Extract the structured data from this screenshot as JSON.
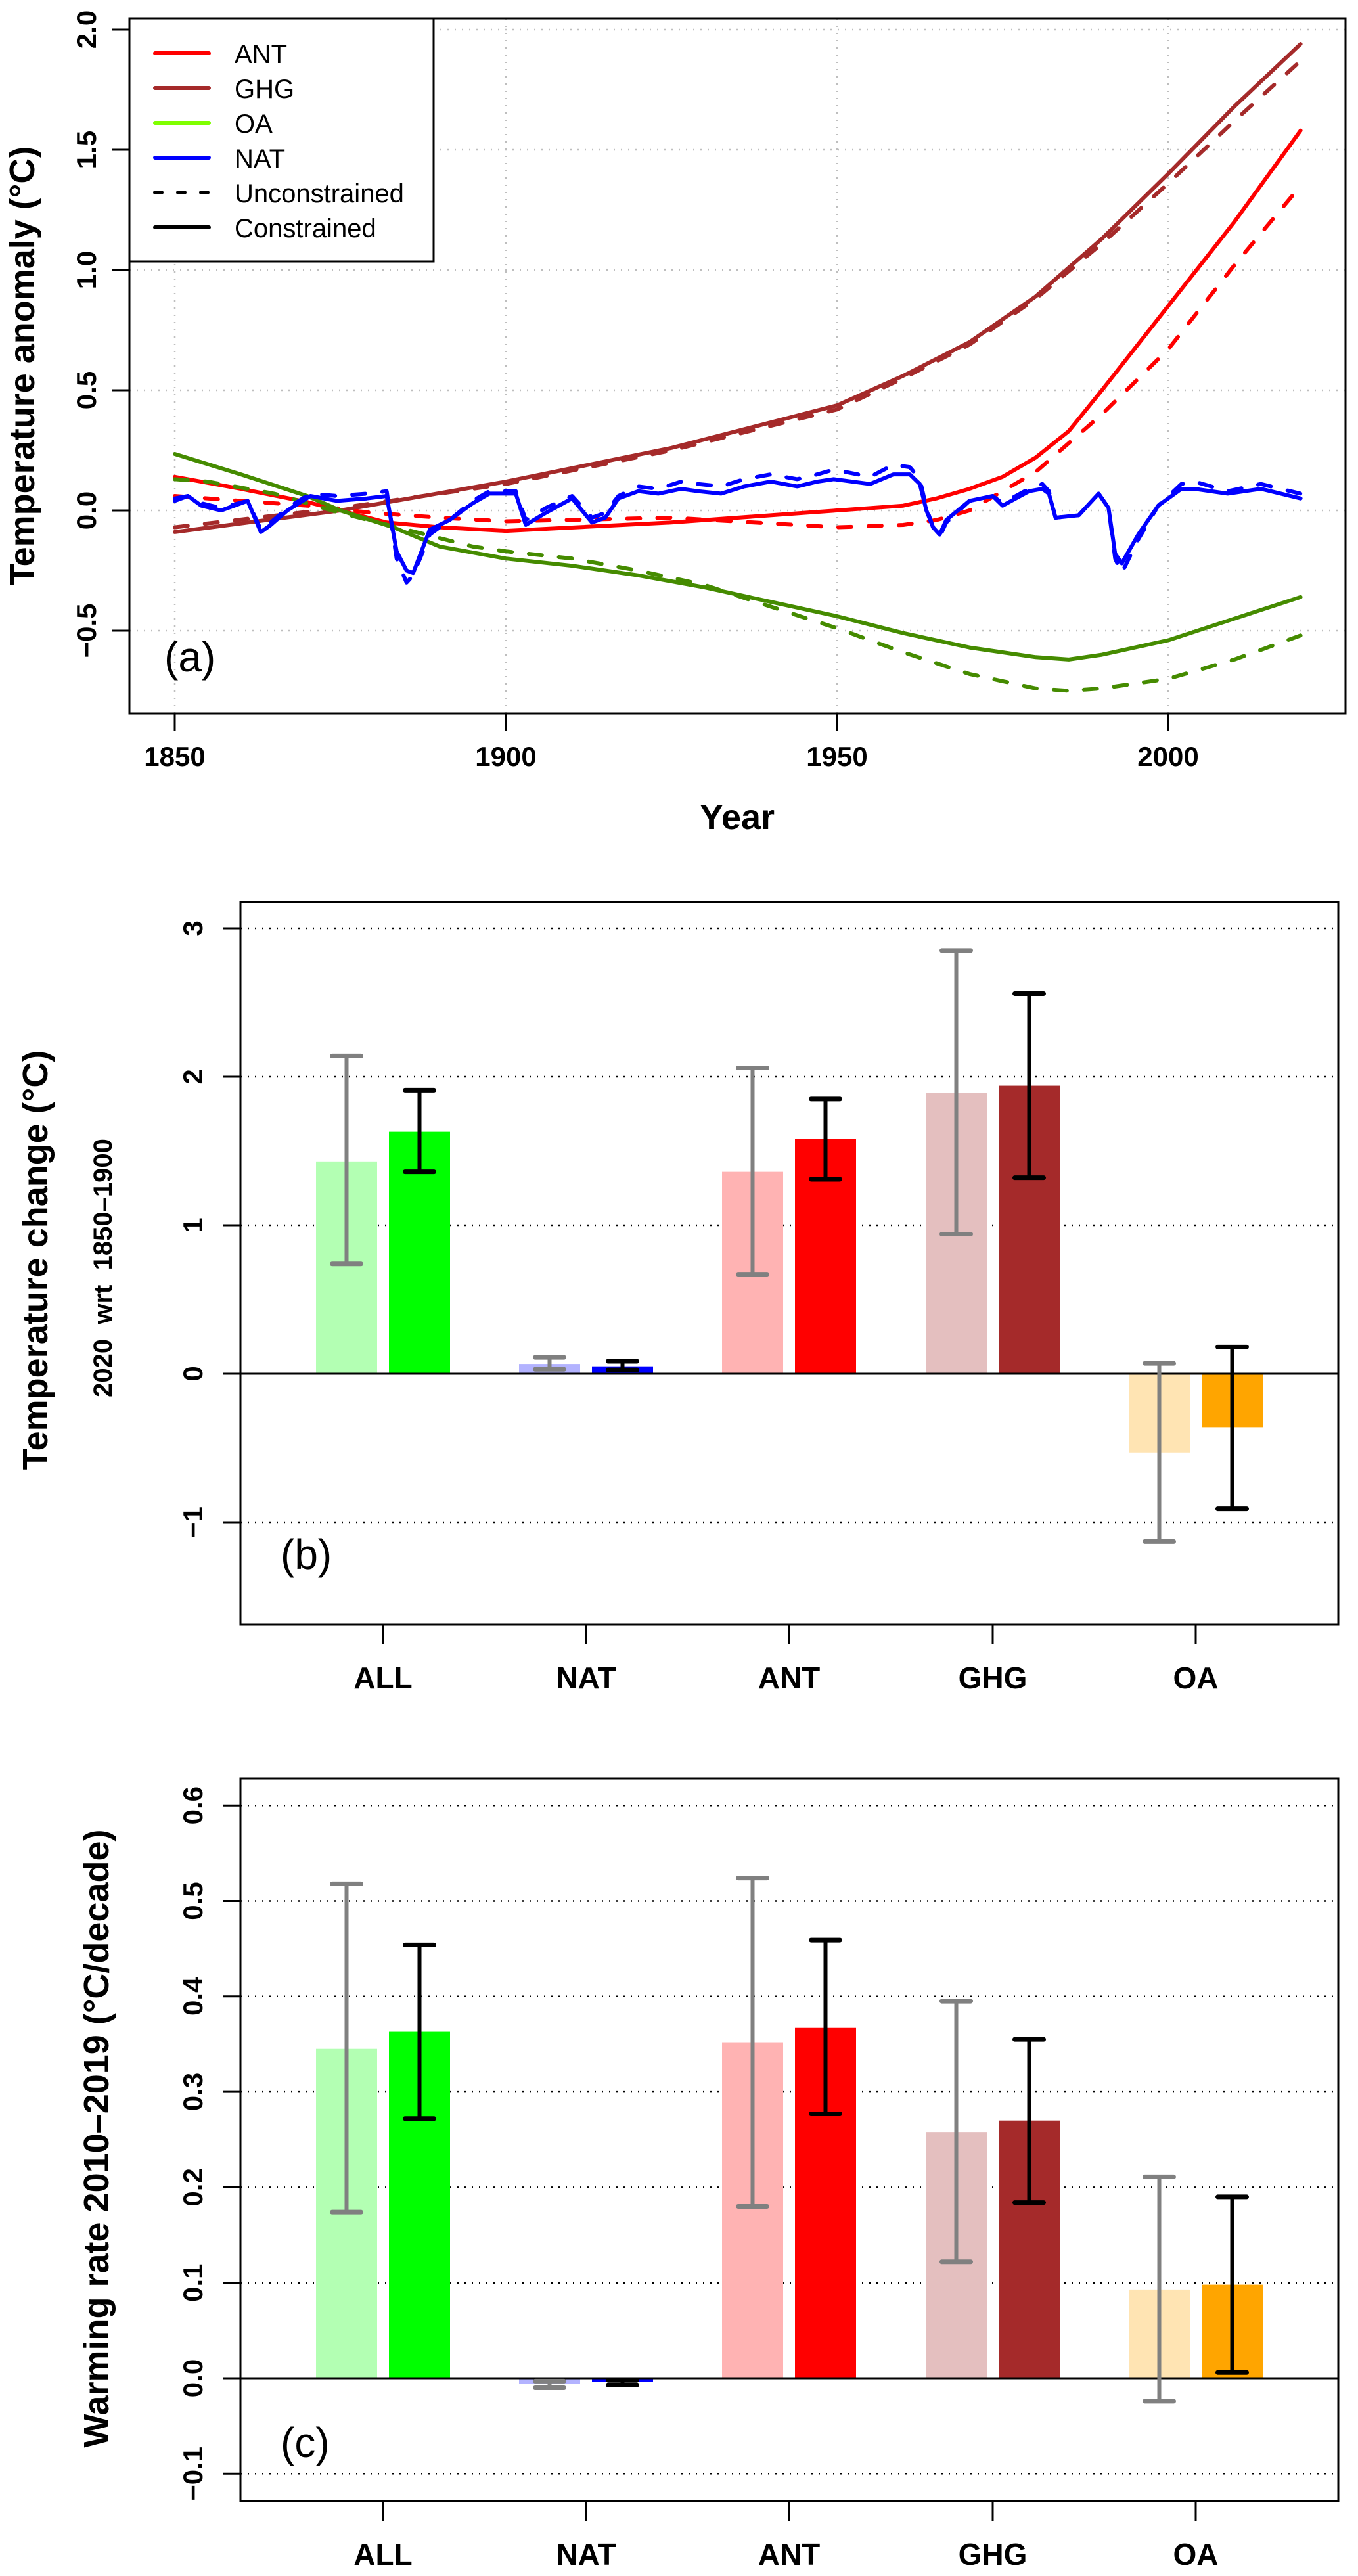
{
  "figure": {
    "colors": {
      "ANT": "#FF0000",
      "GHG": "#A52A2A",
      "OA_line": "#458B00",
      "OA_legend": "#7FFF00",
      "NAT": "#0000FF",
      "ALL": "#00FF00",
      "OA_bar": "#FFA500",
      "ALL_light": "#B3FFB3",
      "NAT_light": "#B3B3FF",
      "ANT_light": "#FFB3B3",
      "GHG_light": "#E4BFBF",
      "OA_light": "#FFE4B3",
      "errbar_unconstrained": "#808080",
      "errbar_constrained": "#000000",
      "grid": "#BEBEBE"
    }
  },
  "chart_data": [
    {
      "panel": "a",
      "type": "line",
      "panel_label": "(a)",
      "title": "",
      "xlabel": "Year",
      "ylabel": "Temperature anomaly (°C)",
      "xlim": [
        1844,
        2027
      ],
      "ylim": [
        -0.85,
        2.05
      ],
      "xticks": [
        1850,
        1900,
        1950,
        2000
      ],
      "yticks": [
        -0.5,
        0.0,
        0.5,
        1.0,
        1.5,
        2.0
      ],
      "ytick_labels": [
        "−0.5",
        "0.0",
        "0.5",
        "1.0",
        "1.5",
        "2.0"
      ],
      "grid": true,
      "legend_position": "top-left",
      "legend": [
        {
          "label": "ANT",
          "color_key": "ANT",
          "style": "solid"
        },
        {
          "label": "GHG",
          "color_key": "GHG",
          "style": "solid"
        },
        {
          "label": "OA",
          "color_key": "OA_legend",
          "style": "solid"
        },
        {
          "label": "NAT",
          "color_key": "NAT",
          "style": "solid"
        },
        {
          "label": "Unconstrained",
          "color_key": "errbar_constrained",
          "style": "dashed"
        },
        {
          "label": "Constrained",
          "color_key": "errbar_constrained",
          "style": "solid"
        }
      ],
      "series": [
        {
          "name": "GHG unconstrained",
          "color_key": "GHG",
          "style": "dashed",
          "x": [
            1850,
            1875,
            1900,
            1925,
            1950,
            1960,
            1970,
            1980,
            1990,
            2000,
            2010,
            2020
          ],
          "y": [
            -0.07,
            0.01,
            0.11,
            0.25,
            0.42,
            0.55,
            0.69,
            0.88,
            1.11,
            1.36,
            1.62,
            1.87
          ]
        },
        {
          "name": "GHG constrained",
          "color_key": "GHG",
          "style": "solid",
          "x": [
            1850,
            1875,
            1900,
            1925,
            1950,
            1960,
            1970,
            1980,
            1990,
            2000,
            2010,
            2020
          ],
          "y": [
            -0.09,
            0.0,
            0.12,
            0.26,
            0.437,
            0.56,
            0.7,
            0.89,
            1.13,
            1.4,
            1.68,
            1.94
          ]
        },
        {
          "name": "ANT unconstrained",
          "color_key": "ANT",
          "style": "dashed",
          "x": [
            1850,
            1860,
            1870,
            1880,
            1890,
            1900,
            1925,
            1950,
            1960,
            1965,
            1970,
            1975,
            1980,
            1985,
            1990,
            2000,
            2010,
            2020
          ],
          "y": [
            0.06,
            0.04,
            0.02,
            -0.01,
            -0.03,
            -0.045,
            -0.03,
            -0.07,
            -0.06,
            -0.04,
            0.0,
            0.08,
            0.16,
            0.28,
            0.4,
            0.67,
            1.02,
            1.35
          ]
        },
        {
          "name": "ANT constrained",
          "color_key": "ANT",
          "style": "solid",
          "x": [
            1850,
            1860,
            1870,
            1875,
            1882,
            1890,
            1900,
            1925,
            1950,
            1960,
            1965,
            1970,
            1975,
            1980,
            1985,
            1990,
            2000,
            2010,
            2020
          ],
          "y": [
            0.14,
            0.09,
            0.035,
            0.0,
            -0.05,
            -0.07,
            -0.085,
            -0.05,
            0.0,
            0.02,
            0.05,
            0.09,
            0.14,
            0.22,
            0.33,
            0.5,
            0.85,
            1.2,
            1.58
          ]
        },
        {
          "name": "OA unconstrained",
          "color_key": "OA_line",
          "style": "dashed",
          "x": [
            1850,
            1855,
            1865,
            1875,
            1885,
            1895,
            1900,
            1910,
            1920,
            1930,
            1940,
            1950,
            1960,
            1970,
            1980,
            1985,
            1990,
            2000,
            2010,
            2020
          ],
          "y": [
            0.13,
            0.12,
            0.07,
            -0.01,
            -0.08,
            -0.15,
            -0.17,
            -0.2,
            -0.25,
            -0.31,
            -0.4,
            -0.49,
            -0.59,
            -0.68,
            -0.74,
            -0.75,
            -0.74,
            -0.7,
            -0.62,
            -0.52
          ]
        },
        {
          "name": "OA constrained",
          "color_key": "OA_line",
          "style": "solid",
          "x": [
            1850,
            1860,
            1870,
            1875,
            1883,
            1890,
            1900,
            1910,
            1920,
            1930,
            1940,
            1950,
            1960,
            1970,
            1980,
            1985,
            1990,
            2000,
            2010,
            2020
          ],
          "y": [
            0.235,
            0.15,
            0.06,
            0.0,
            -0.07,
            -0.15,
            -0.2,
            -0.23,
            -0.27,
            -0.32,
            -0.38,
            -0.44,
            -0.51,
            -0.57,
            -0.61,
            -0.62,
            -0.6,
            -0.54,
            -0.45,
            -0.36
          ]
        },
        {
          "name": "NAT unconstrained",
          "color_key": "NAT",
          "style": "dashed",
          "x": [
            1850,
            1852,
            1854,
            1857,
            1861,
            1863,
            1864.5,
            1867,
            1870.5,
            1874.5,
            1879,
            1882,
            1883.5,
            1885,
            1886,
            1888.5,
            1891.5,
            1895,
            1897.5,
            1901.5,
            1903,
            1906,
            1910,
            1913,
            1915,
            1917,
            1920,
            1923,
            1926.5,
            1929,
            1932.5,
            1936,
            1940,
            1944,
            1947,
            1949.5,
            1955,
            1958.5,
            1961,
            1962.5,
            1963.5,
            1964.5,
            1965.5,
            1966.5,
            1970,
            1973.5,
            1975,
            1979,
            1981,
            1982,
            1983,
            1986.5,
            1989.5,
            1991,
            1992,
            1993,
            1995.5,
            1998.5,
            2002,
            2004,
            2009,
            2014,
            2020
          ],
          "y": [
            0.05,
            0.06,
            0.03,
            0.01,
            0.04,
            -0.08,
            -0.05,
            0.01,
            0.07,
            0.06,
            0.07,
            0.08,
            -0.2,
            -0.3,
            -0.27,
            -0.1,
            -0.04,
            0.04,
            0.08,
            0.08,
            -0.04,
            0.01,
            0.06,
            -0.03,
            -0.01,
            0.06,
            0.1,
            0.09,
            0.12,
            0.11,
            0.1,
            0.13,
            0.15,
            0.13,
            0.15,
            0.17,
            0.14,
            0.19,
            0.18,
            0.13,
            0.01,
            -0.07,
            -0.11,
            -0.05,
            0.04,
            0.06,
            0.03,
            0.09,
            0.11,
            0.08,
            -0.03,
            -0.02,
            0.07,
            0.01,
            -0.2,
            -0.26,
            -0.12,
            0.02,
            0.11,
            0.12,
            0.08,
            0.11,
            0.07
          ]
        },
        {
          "name": "NAT constrained",
          "color_key": "NAT",
          "style": "solid",
          "x": [
            1850,
            1852,
            1854,
            1857,
            1861,
            1863,
            1864.5,
            1867,
            1870.5,
            1874.5,
            1879,
            1882,
            1883.5,
            1885,
            1886,
            1888.5,
            1891.5,
            1895,
            1897.5,
            1901.5,
            1903,
            1906,
            1910,
            1913,
            1915,
            1917,
            1920,
            1923,
            1926.5,
            1929,
            1932.5,
            1936,
            1940,
            1944,
            1947,
            1949.5,
            1955,
            1958.5,
            1961,
            1962.5,
            1963.5,
            1964.5,
            1965.5,
            1966.5,
            1970,
            1973.5,
            1975,
            1979,
            1981,
            1982,
            1983,
            1986.5,
            1989.5,
            1991,
            1992,
            1993,
            1995.5,
            1998.5,
            2002,
            2004,
            2009,
            2014,
            2020
          ],
          "y": [
            0.04,
            0.06,
            0.02,
            0.0,
            0.04,
            -0.09,
            -0.06,
            0.0,
            0.06,
            0.04,
            0.05,
            0.06,
            -0.17,
            -0.25,
            -0.26,
            -0.08,
            -0.04,
            0.03,
            0.07,
            0.07,
            -0.06,
            -0.01,
            0.05,
            -0.05,
            -0.03,
            0.05,
            0.08,
            0.07,
            0.09,
            0.08,
            0.07,
            0.1,
            0.12,
            0.1,
            0.12,
            0.13,
            0.11,
            0.15,
            0.15,
            0.11,
            0.0,
            -0.07,
            -0.1,
            -0.04,
            0.04,
            0.06,
            0.02,
            0.08,
            0.09,
            0.07,
            -0.03,
            -0.02,
            0.07,
            0.01,
            -0.18,
            -0.22,
            -0.1,
            0.02,
            0.09,
            0.09,
            0.07,
            0.09,
            0.05
          ]
        }
      ]
    },
    {
      "panel": "b",
      "type": "bar",
      "panel_label": "(b)",
      "title": "",
      "xlabel": "",
      "ylabel": "Temperature change (°C)",
      "ysublabel": "2020  wrt  1850–1900",
      "ylim": [
        -1.68,
        3.2
      ],
      "yticks": [
        -1,
        0,
        1,
        2,
        3
      ],
      "ytick_labels": [
        "−1",
        "0",
        "1",
        "2",
        "3"
      ],
      "grid": true,
      "categories": [
        "ALL",
        "NAT",
        "ANT",
        "GHG",
        "OA"
      ],
      "series": [
        {
          "name": "Unconstrained",
          "color_keys": [
            "ALL_light",
            "NAT_light",
            "ANT_light",
            "GHG_light",
            "OA_light"
          ],
          "errbar_color_key": "errbar_unconstrained",
          "values": [
            1.43,
            0.066,
            1.36,
            1.89,
            -0.53
          ],
          "lower": [
            0.74,
            0.03,
            0.67,
            0.94,
            -1.13
          ],
          "upper": [
            2.14,
            0.11,
            2.06,
            2.85,
            0.07
          ]
        },
        {
          "name": "Constrained",
          "color_keys": [
            "ALL",
            "NAT",
            "ANT",
            "GHG",
            "OA_bar"
          ],
          "errbar_color_key": "errbar_constrained",
          "values": [
            1.63,
            0.05,
            1.58,
            1.94,
            -0.36
          ],
          "lower": [
            1.36,
            0.026,
            1.31,
            1.32,
            -0.91
          ],
          "upper": [
            1.91,
            0.084,
            1.85,
            2.56,
            0.18
          ]
        }
      ]
    },
    {
      "panel": "c",
      "type": "bar",
      "panel_label": "(c)",
      "title": "",
      "xlabel": "",
      "ylabel": "Warming rate 2010–2019 (°C/decade)",
      "ylim": [
        -0.128,
        0.628
      ],
      "yticks": [
        -0.1,
        0.0,
        0.1,
        0.2,
        0.3,
        0.4,
        0.5,
        0.6
      ],
      "ytick_labels": [
        "−0.1",
        "0.0",
        "0.1",
        "0.2",
        "0.3",
        "0.4",
        "0.5",
        "0.6"
      ],
      "grid": true,
      "categories": [
        "ALL",
        "NAT",
        "ANT",
        "GHG",
        "OA"
      ],
      "series": [
        {
          "name": "Unconstrained",
          "color_keys": [
            "ALL_light",
            "NAT_light",
            "ANT_light",
            "GHG_light",
            "OA_light"
          ],
          "errbar_color_key": "errbar_unconstrained",
          "values": [
            0.345,
            -0.006,
            0.352,
            0.258,
            0.093
          ],
          "lower": [
            0.174,
            -0.01,
            0.18,
            0.122,
            -0.024
          ],
          "upper": [
            0.518,
            -0.003,
            0.524,
            0.395,
            0.211
          ]
        },
        {
          "name": "Constrained",
          "color_keys": [
            "ALL",
            "NAT",
            "ANT",
            "GHG",
            "OA_bar"
          ],
          "errbar_color_key": "errbar_constrained",
          "values": [
            0.363,
            -0.004,
            0.367,
            0.27,
            0.098
          ],
          "lower": [
            0.272,
            -0.007,
            0.277,
            0.184,
            0.006
          ],
          "upper": [
            0.454,
            -0.002,
            0.459,
            0.355,
            0.19
          ]
        }
      ]
    }
  ]
}
